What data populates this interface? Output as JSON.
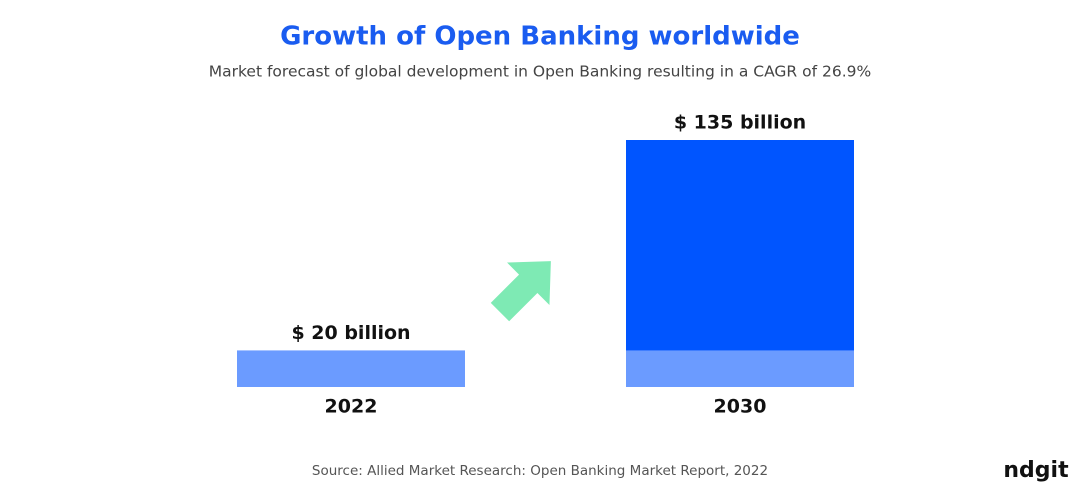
{
  "chart_data": {
    "type": "bar",
    "title": "Growth of Open Banking worldwide",
    "subtitle": "Market forecast of global development in Open Banking resulting in a CAGR of 26.9%",
    "categories": [
      "2022",
      "2030"
    ],
    "values": [
      20,
      135
    ],
    "value_labels": [
      "$ 20 billion",
      "$ 135 billion"
    ],
    "colors": [
      "#6b9bff",
      "#0055ff"
    ],
    "source": "Source: Allied Market Research: Open Banking Market Report, 2022",
    "brand": "ndgit"
  }
}
